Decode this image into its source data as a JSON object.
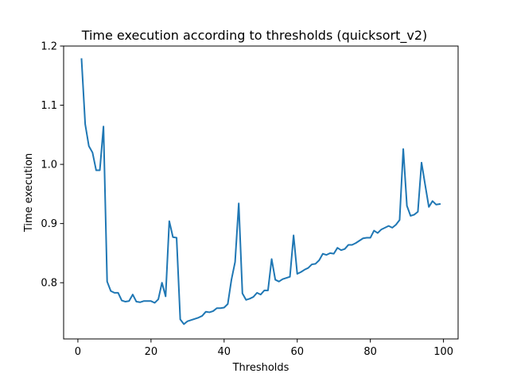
{
  "chart_data": {
    "type": "line",
    "title": "Time execution according to thresholds (quicksort_v2)",
    "xlabel": "Thresholds",
    "ylabel": "Time execution",
    "xlim": [
      -3.9,
      104
    ],
    "ylim": [
      0.705,
      1.2
    ],
    "xticks": [
      0,
      20,
      40,
      60,
      80,
      100
    ],
    "yticks": [
      0.8,
      0.9,
      1.0,
      1.1,
      1.2
    ],
    "xtick_labels": [
      "0",
      "20",
      "40",
      "60",
      "80",
      "100"
    ],
    "ytick_labels": [
      "0.8",
      "0.9",
      "1.0",
      "1.1",
      "1.2"
    ],
    "grid": false,
    "series": [
      {
        "color": "#1f77b4",
        "x": [
          1,
          2,
          3,
          4,
          5,
          6,
          7,
          8,
          9,
          10,
          11,
          12,
          13,
          14,
          15,
          16,
          17,
          18,
          19,
          20,
          21,
          22,
          23,
          24,
          25,
          26,
          27,
          28,
          29,
          30,
          31,
          32,
          33,
          34,
          35,
          36,
          37,
          38,
          39,
          40,
          41,
          42,
          43,
          44,
          45,
          46,
          47,
          48,
          49,
          50,
          51,
          52,
          53,
          54,
          55,
          56,
          57,
          58,
          59,
          60,
          61,
          62,
          63,
          64,
          65,
          66,
          67,
          68,
          69,
          70,
          71,
          72,
          73,
          74,
          75,
          76,
          77,
          78,
          79,
          80,
          81,
          82,
          83,
          84,
          85,
          86,
          87,
          88,
          89,
          90,
          91,
          92,
          93,
          94,
          95,
          96,
          97,
          98,
          99
        ],
        "y": [
          1.178,
          1.068,
          1.031,
          1.02,
          0.99,
          0.99,
          1.064,
          0.802,
          0.786,
          0.783,
          0.783,
          0.77,
          0.768,
          0.769,
          0.78,
          0.768,
          0.767,
          0.769,
          0.769,
          0.769,
          0.766,
          0.772,
          0.8,
          0.777,
          0.904,
          0.877,
          0.876,
          0.738,
          0.73,
          0.735,
          0.737,
          0.739,
          0.741,
          0.744,
          0.751,
          0.75,
          0.752,
          0.757,
          0.757,
          0.758,
          0.764,
          0.805,
          0.835,
          0.934,
          0.782,
          0.771,
          0.773,
          0.776,
          0.783,
          0.78,
          0.787,
          0.787,
          0.84,
          0.805,
          0.802,
          0.806,
          0.808,
          0.81,
          0.88,
          0.815,
          0.818,
          0.822,
          0.825,
          0.831,
          0.832,
          0.838,
          0.849,
          0.847,
          0.85,
          0.849,
          0.859,
          0.855,
          0.857,
          0.864,
          0.864,
          0.867,
          0.871,
          0.875,
          0.876,
          0.876,
          0.888,
          0.884,
          0.89,
          0.893,
          0.896,
          0.893,
          0.898,
          0.906,
          1.026,
          0.93,
          0.913,
          0.915,
          0.92,
          1.003,
          0.965,
          0.928,
          0.938,
          0.932,
          0.933
        ]
      }
    ]
  }
}
